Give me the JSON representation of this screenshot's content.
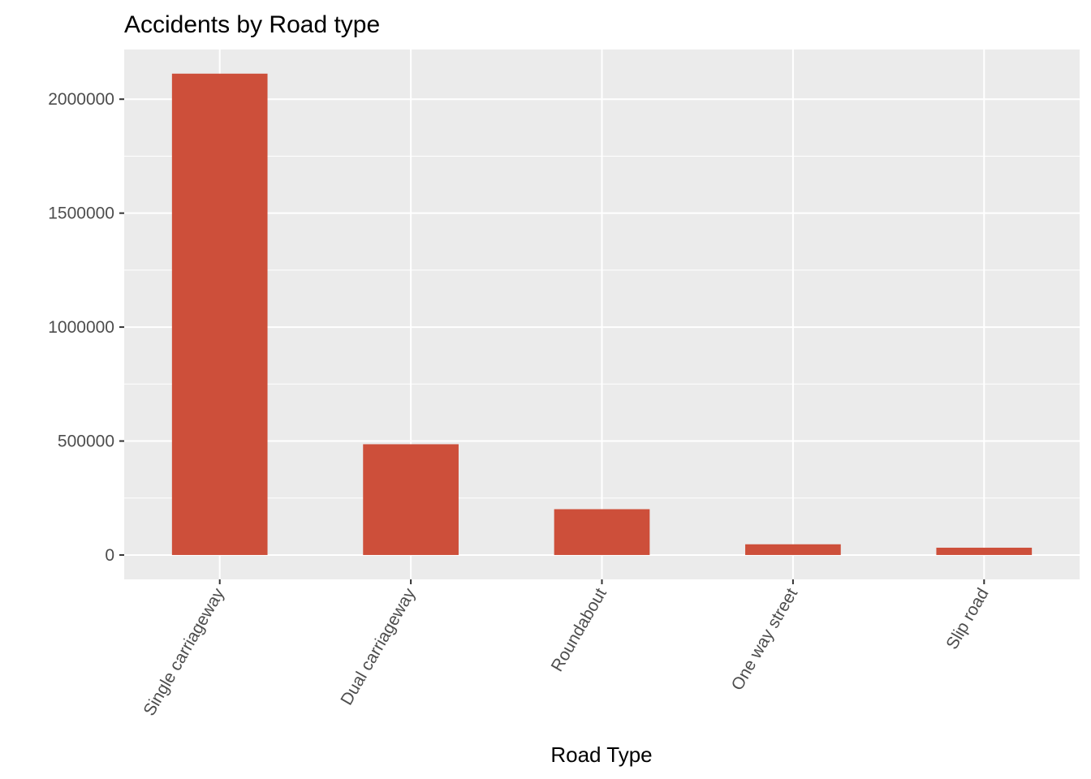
{
  "chart_data": {
    "type": "bar",
    "title": "Accidents by Road type",
    "xlabel": "Road Type",
    "ylabel": "",
    "categories": [
      "Single carriageway",
      "Dual carriageway",
      "Roundabout",
      "One way street",
      "Slip road"
    ],
    "values": [
      2112000,
      486000,
      201000,
      47000,
      32000
    ],
    "ylim": [
      -107000,
      2218000
    ],
    "yticks": [
      0,
      500000,
      1000000,
      1500000,
      2000000
    ],
    "ytick_labels": [
      "0",
      "500000",
      "1000000",
      "1500000",
      "2000000"
    ],
    "grid": true,
    "legend": "none",
    "colors": {
      "bar": "#cd4f3a",
      "panel": "#ebebeb",
      "grid": "#ffffff"
    }
  }
}
